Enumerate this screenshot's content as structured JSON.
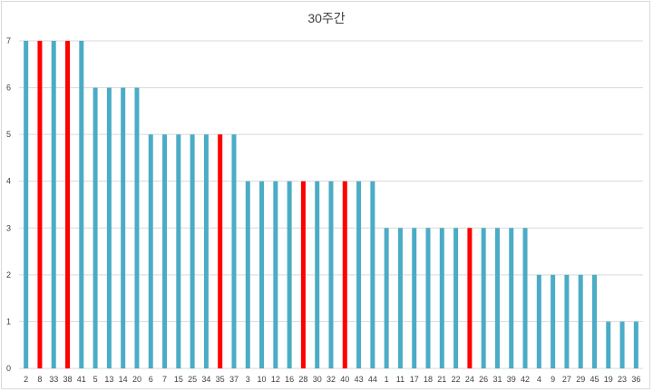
{
  "chart_data": {
    "type": "bar",
    "title": "30주간",
    "xlabel": "",
    "ylabel": "",
    "ylim": [
      0,
      7
    ],
    "yticks": [
      0,
      1,
      2,
      3,
      4,
      5,
      6,
      7
    ],
    "grid": true,
    "legend": "none",
    "colors": {
      "default": "#4bacc6",
      "highlight": "#ff0000",
      "grid": "#d9d9d9"
    },
    "categories": [
      "2",
      "8",
      "33",
      "38",
      "41",
      "5",
      "13",
      "14",
      "20",
      "6",
      "7",
      "15",
      "25",
      "34",
      "35",
      "37",
      "3",
      "10",
      "12",
      "16",
      "28",
      "30",
      "32",
      "40",
      "43",
      "44",
      "1",
      "11",
      "17",
      "18",
      "21",
      "22",
      "24",
      "26",
      "31",
      "39",
      "42",
      "4",
      "9",
      "27",
      "29",
      "45",
      "19",
      "23",
      "36"
    ],
    "values": [
      7,
      7,
      7,
      7,
      7,
      6,
      6,
      6,
      6,
      5,
      5,
      5,
      5,
      5,
      5,
      5,
      4,
      4,
      4,
      4,
      4,
      4,
      4,
      4,
      4,
      4,
      3,
      3,
      3,
      3,
      3,
      3,
      3,
      3,
      3,
      3,
      3,
      2,
      2,
      2,
      2,
      2,
      1,
      1,
      1
    ],
    "highlighted": [
      "8",
      "38",
      "35",
      "28",
      "40",
      "24"
    ]
  }
}
